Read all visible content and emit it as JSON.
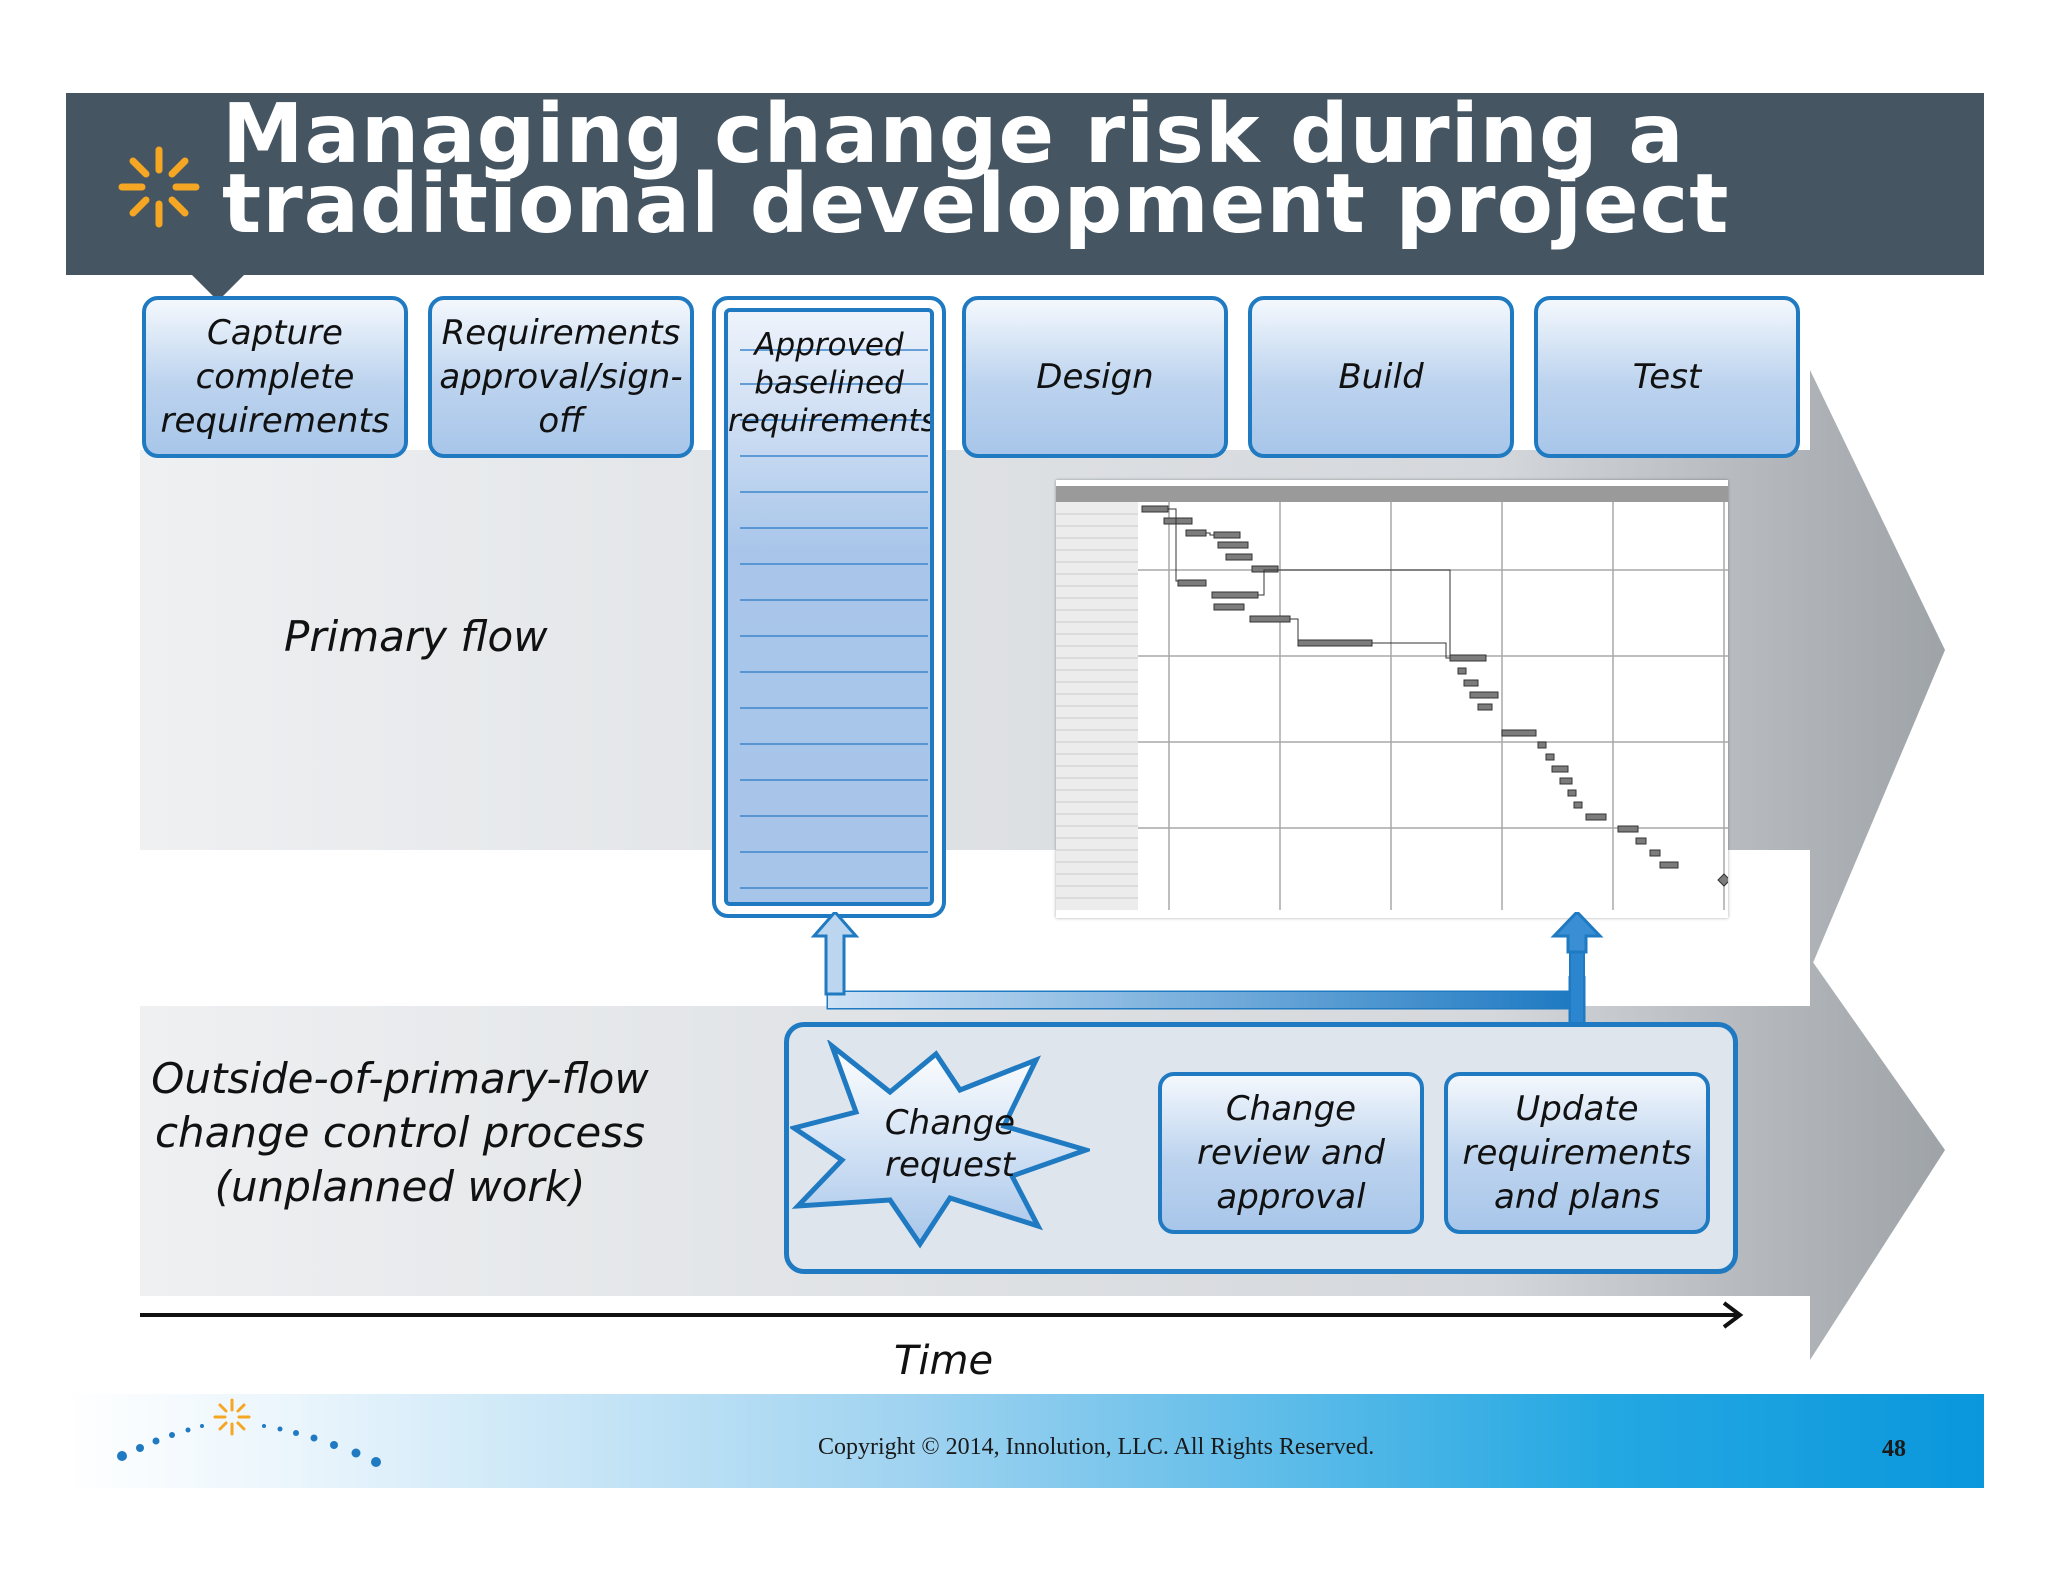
{
  "title": {
    "line1": "Managing change risk during a",
    "line2": "traditional development project"
  },
  "phases": [
    {
      "label": "Capture\ncomplete\nrequirements"
    },
    {
      "label": "Requirements\napproval/sign-off"
    },
    {
      "label": "Approved\nbaselined\nrequirements"
    },
    {
      "label": "Design"
    },
    {
      "label": "Build"
    },
    {
      "label": "Test"
    }
  ],
  "primary_flow_label": "Primary flow",
  "outside_flow_label": "Outside-of-primary-flow\nchange control process\n(unplanned work)",
  "change_steps": [
    {
      "label": "Change\nrequest"
    },
    {
      "label": "Change\nreview and\napproval"
    },
    {
      "label": "Update\nrequirements\nand plans"
    }
  ],
  "time_label": "Time",
  "footer": {
    "copyright": "Copyright © 2014, Innolution, LLC. All Rights Reserved.",
    "page_number": "48"
  },
  "colors": {
    "title_bar": "#455561",
    "accent_blue": "#1f7ac2",
    "logo_orange": "#f5a623",
    "band_gray": "#d9dcdf"
  }
}
